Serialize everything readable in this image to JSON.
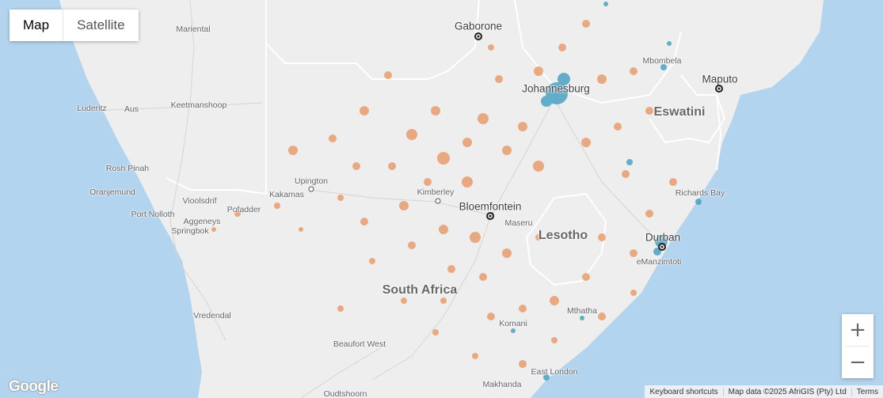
{
  "map_type": {
    "map_label": "Map",
    "satellite_label": "Satellite",
    "selected": "Map"
  },
  "places": {
    "gaborone": "Gaborone",
    "johannesburg": "Johannesburg",
    "mbombela": "Mbombela",
    "maputo": "Maputo",
    "eswatini": "Eswatini",
    "mariental": "Mariental",
    "luderitz": "Luderitz",
    "aus": "Aus",
    "keetmanshoop": "Keetmanshoop",
    "rosh_pinah": "Rosh Pinah",
    "oranjemund": "Oranjemund",
    "vioolsdrif": "Vioolsdrif",
    "upington": "Upington",
    "kakamas": "Kakamas",
    "pofadder": "Pofadder",
    "port_nolloth": "Port Nolloth",
    "aggeneys": "Aggeneys",
    "springbok": "Springbok",
    "kimberley": "Kimberley",
    "bloemfontein": "Bloemfontein",
    "maseru": "Maseru",
    "lesotho": "Lesotho",
    "richards_bay": "Richards Bay",
    "durban": "Durban",
    "emanzimtoti": "eManzimtoti",
    "south_africa": "South Africa",
    "vredendal": "Vredendal",
    "mthatha": "Mthatha",
    "komani": "Komani",
    "beaufort_west": "Beaufort West",
    "east_london": "East London",
    "makhanda": "Makhanda",
    "oudtshoorn": "Oudtshoorn"
  },
  "zoom": {
    "in_label": "+",
    "out_label": "−"
  },
  "logo": "Google",
  "footer": {
    "shortcuts": "Keyboard shortcuts",
    "attribution": "Map data ©2025 AfriGIS (Pty) Ltd",
    "terms": "Terms"
  },
  "colors": {
    "ocean": "#b3d4ee",
    "land": "#eeeeee",
    "rural_density": "#e8935c",
    "urban_density": "#4aa3c4"
  }
}
